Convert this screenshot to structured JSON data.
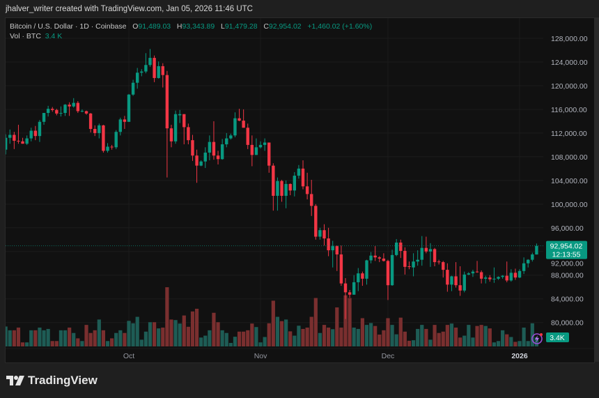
{
  "credit": "jhalver_writer created with TradingView.com, Jan 05, 2026 11:46 UTC",
  "legend": {
    "symbol": "Bitcoin / U.S. Dollar · 1D · Coinbase",
    "o_label": "O",
    "o": "91,489.03",
    "h_label": "H",
    "h": "93,343.89",
    "l_label": "L",
    "l": "91,479.28",
    "c_label": "C",
    "c": "92,954.02",
    "change": "+1,460.02 (+1.60%)",
    "vol_label": "Vol · BTC",
    "vol": "3.4 K"
  },
  "last_price_label": "92,954.02",
  "countdown": "12:13:55",
  "volume_label": "3.4K",
  "logo_text": "TradingView",
  "colors": {
    "up": "#089981",
    "down": "#f23645",
    "vol_up": "#1e5c55",
    "vol_down": "#7a2f2f",
    "background": "#111111"
  },
  "chart_data": {
    "type": "candlestick",
    "ylim": [
      76000,
      130000
    ],
    "y_ticks": [
      "128,000.00",
      "124,000.00",
      "120,000.00",
      "116,000.00",
      "112,000.00",
      "108,000.00",
      "104,000.00",
      "100,000.00",
      "96,000.00",
      "92,000.00",
      "88,000.00",
      "84,000.00",
      "80,000.00"
    ],
    "y_tick_values": [
      128000,
      124000,
      120000,
      116000,
      112000,
      108000,
      104000,
      100000,
      96000,
      92000,
      88000,
      84000,
      80000
    ],
    "x_ticks": [
      {
        "label": "Oct",
        "date": "2025-10-01"
      },
      {
        "label": "Nov",
        "date": "2025-11-01"
      },
      {
        "label": "Dec",
        "date": "2025-12-01"
      },
      {
        "label": "2026",
        "date": "2026-01-01"
      }
    ],
    "grid": true,
    "volume_unit": "K BTC",
    "columns": [
      "date",
      "open",
      "high",
      "low",
      "close",
      "volume"
    ],
    "candles": [
      [
        "2025-09-02",
        109200,
        111800,
        108400,
        111200,
        7.4
      ],
      [
        "2025-09-03",
        111200,
        112600,
        110200,
        111700,
        6
      ],
      [
        "2025-09-04",
        111700,
        112200,
        109300,
        110700,
        6
      ],
      [
        "2025-09-05",
        110700,
        113400,
        110200,
        110600,
        7
      ],
      [
        "2025-09-06",
        110600,
        111200,
        110200,
        110200,
        1.5
      ],
      [
        "2025-09-07",
        110200,
        111600,
        110000,
        111100,
        1.5
      ],
      [
        "2025-09-08",
        111100,
        112900,
        110600,
        112400,
        6
      ],
      [
        "2025-09-09",
        112400,
        113200,
        110800,
        111500,
        6
      ],
      [
        "2025-09-10",
        111500,
        114200,
        110500,
        113900,
        7
      ],
      [
        "2025-09-11",
        113900,
        115400,
        113400,
        115400,
        6
      ],
      [
        "2025-09-12",
        115400,
        116600,
        114800,
        116100,
        6.5
      ],
      [
        "2025-09-13",
        116100,
        116400,
        115600,
        115900,
        2
      ],
      [
        "2025-09-14",
        115900,
        116100,
        115000,
        115300,
        2
      ],
      [
        "2025-09-15",
        115300,
        116500,
        114800,
        115400,
        6
      ],
      [
        "2025-09-16",
        115400,
        116900,
        114900,
        116800,
        6
      ],
      [
        "2025-09-17",
        116800,
        117200,
        114900,
        116500,
        7
      ],
      [
        "2025-09-18",
        116500,
        117900,
        116300,
        117100,
        5
      ],
      [
        "2025-09-19",
        117100,
        117400,
        115400,
        115700,
        3
      ],
      [
        "2025-09-20",
        115700,
        116000,
        115500,
        115750,
        2
      ],
      [
        "2025-09-21",
        115700,
        115800,
        115100,
        115300,
        8
      ],
      [
        "2025-09-22",
        115300,
        115400,
        112100,
        112700,
        5
      ],
      [
        "2025-09-23",
        112700,
        113300,
        111500,
        112000,
        6
      ],
      [
        "2025-09-24",
        112000,
        113600,
        111100,
        113300,
        10
      ],
      [
        "2025-09-25",
        113300,
        113400,
        108700,
        109000,
        6
      ],
      [
        "2025-09-26",
        109000,
        110300,
        108700,
        109700,
        2
      ],
      [
        "2025-09-27",
        109700,
        110000,
        109200,
        109600,
        3
      ],
      [
        "2025-09-28",
        109600,
        112500,
        109300,
        112200,
        5
      ],
      [
        "2025-09-29",
        112200,
        114600,
        111600,
        114300,
        6
      ],
      [
        "2025-09-30",
        114300,
        114900,
        112700,
        113900,
        5
      ],
      [
        "2025-10-01",
        113900,
        118600,
        113900,
        118500,
        9.5
      ],
      [
        "2025-10-02",
        118500,
        121000,
        118300,
        120500,
        8.6
      ],
      [
        "2025-10-03",
        120500,
        123000,
        119500,
        122200,
        11
      ],
      [
        "2025-10-04",
        122200,
        122800,
        121600,
        122400,
        2.5
      ],
      [
        "2025-10-05",
        122400,
        125500,
        122100,
        123500,
        5.5
      ],
      [
        "2025-10-06",
        123500,
        126200,
        123200,
        124700,
        9
      ],
      [
        "2025-10-07",
        124700,
        125100,
        120600,
        121300,
        9
      ],
      [
        "2025-10-08",
        121300,
        124100,
        121200,
        123300,
        6.7
      ],
      [
        "2025-10-09",
        123300,
        123800,
        119700,
        121800,
        7
      ],
      [
        "2025-10-10",
        121800,
        122500,
        104500,
        112800,
        22
      ],
      [
        "2025-10-11",
        112800,
        113400,
        109600,
        110600,
        10
      ],
      [
        "2025-10-12",
        110600,
        115800,
        110200,
        115200,
        9.8
      ],
      [
        "2025-10-13",
        115000,
        115900,
        113700,
        115200,
        8.5
      ],
      [
        "2025-10-14",
        115200,
        115200,
        110100,
        113000,
        11.5
      ],
      [
        "2025-10-15",
        113000,
        113600,
        110100,
        110800,
        7.3
      ],
      [
        "2025-10-16",
        110800,
        111700,
        107300,
        108200,
        13
      ],
      [
        "2025-10-17",
        108200,
        109200,
        103600,
        106500,
        14
      ],
      [
        "2025-10-18",
        106500,
        107400,
        106400,
        107200,
        3.3
      ],
      [
        "2025-10-19",
        107200,
        109600,
        106100,
        108700,
        4
      ],
      [
        "2025-10-20",
        108700,
        111600,
        107400,
        110500,
        6
      ],
      [
        "2025-10-21",
        110500,
        114000,
        107500,
        108200,
        12.5
      ],
      [
        "2025-10-22",
        108200,
        109000,
        106700,
        107600,
        9
      ],
      [
        "2025-10-23",
        107600,
        111000,
        107500,
        110100,
        6
      ],
      [
        "2025-10-24",
        110100,
        112000,
        109600,
        111100,
        5
      ],
      [
        "2025-10-25",
        111100,
        111900,
        110900,
        111600,
        1.3
      ],
      [
        "2025-10-26",
        111600,
        115500,
        111300,
        114500,
        3.6
      ],
      [
        "2025-10-27",
        114500,
        116100,
        114000,
        114100,
        5.5
      ],
      [
        "2025-10-28",
        114100,
        116000,
        112900,
        112900,
        5.5
      ],
      [
        "2025-10-29",
        112900,
        113600,
        109300,
        110000,
        6
      ],
      [
        "2025-10-30",
        110000,
        111600,
        106400,
        108300,
        8.5
      ],
      [
        "2025-10-31",
        108300,
        111100,
        108300,
        109600,
        7.2
      ],
      [
        "2025-11-01",
        109600,
        110600,
        109400,
        110000,
        1.5
      ],
      [
        "2025-11-02",
        110000,
        111100,
        109000,
        110400,
        3.5
      ],
      [
        "2025-11-03",
        110400,
        110400,
        105300,
        106500,
        8.6
      ],
      [
        "2025-11-04",
        106500,
        106900,
        98900,
        101400,
        17
      ],
      [
        "2025-11-05",
        101400,
        104500,
        98900,
        103900,
        11
      ],
      [
        "2025-11-06",
        103900,
        104100,
        100400,
        101400,
        9.4
      ],
      [
        "2025-11-07",
        101400,
        104000,
        99300,
        103400,
        10
      ],
      [
        "2025-11-08",
        103400,
        103500,
        101500,
        102300,
        5.6
      ],
      [
        "2025-11-09",
        102300,
        105400,
        101300,
        104800,
        4
      ],
      [
        "2025-11-10",
        104800,
        106600,
        104300,
        106000,
        7.7
      ],
      [
        "2025-11-11",
        106000,
        107400,
        102500,
        103000,
        6.5
      ],
      [
        "2025-11-12",
        103000,
        105300,
        100800,
        101700,
        7
      ],
      [
        "2025-11-13",
        101700,
        104100,
        98000,
        99700,
        11
      ],
      [
        "2025-11-14",
        99700,
        100000,
        94000,
        94500,
        18
      ],
      [
        "2025-11-15",
        94500,
        96000,
        94000,
        95600,
        5
      ],
      [
        "2025-11-16",
        95600,
        96600,
        93000,
        94200,
        8
      ],
      [
        "2025-11-17",
        94200,
        96000,
        91200,
        92200,
        7
      ],
      [
        "2025-11-18",
        92200,
        93800,
        89300,
        92900,
        6.4
      ],
      [
        "2025-11-19",
        92900,
        93000,
        88700,
        91500,
        14.5
      ],
      [
        "2025-11-20",
        91500,
        93000,
        86200,
        86600,
        7
      ],
      [
        "2025-11-21",
        86600,
        87500,
        80600,
        85100,
        19
      ],
      [
        "2025-11-22",
        85100,
        85500,
        84200,
        84700,
        18
      ],
      [
        "2025-11-23",
        84700,
        88000,
        84700,
        86800,
        7
      ],
      [
        "2025-11-24",
        86800,
        89200,
        85300,
        88300,
        6.5
      ],
      [
        "2025-11-25",
        88300,
        88600,
        86200,
        87400,
        10.5
      ],
      [
        "2025-11-26",
        87400,
        90600,
        86400,
        90500,
        8
      ],
      [
        "2025-11-27",
        90500,
        91900,
        90000,
        91300,
        8.7
      ],
      [
        "2025-11-28",
        91300,
        92900,
        90400,
        91000,
        7.6
      ],
      [
        "2025-11-29",
        91000,
        91200,
        90200,
        90800,
        4.4
      ],
      [
        "2025-11-30",
        90800,
        91700,
        90300,
        90400,
        6
      ],
      [
        "2025-12-01",
        90400,
        90600,
        83800,
        86300,
        10.5
      ],
      [
        "2025-12-02",
        86300,
        92300,
        86200,
        91400,
        8
      ],
      [
        "2025-12-03",
        91400,
        94100,
        91200,
        93500,
        4.5
      ],
      [
        "2025-12-04",
        93500,
        94000,
        90900,
        92100,
        10.7
      ],
      [
        "2025-12-05",
        92100,
        92700,
        88100,
        89400,
        5.5
      ],
      [
        "2025-12-06",
        89500,
        90300,
        89000,
        89400,
        2.1
      ],
      [
        "2025-12-07",
        89300,
        91700,
        87800,
        90300,
        2.3
      ],
      [
        "2025-12-08",
        90300,
        92200,
        89600,
        90600,
        6.5
      ],
      [
        "2025-12-09",
        90600,
        94600,
        89600,
        92600,
        8
      ],
      [
        "2025-12-10",
        92600,
        94500,
        91700,
        92000,
        6.5
      ],
      [
        "2025-12-11",
        92000,
        93400,
        89400,
        92400,
        2.5
      ],
      [
        "2025-12-12",
        92400,
        92600,
        89500,
        90200,
        8
      ],
      [
        "2025-12-13",
        90300,
        90600,
        89800,
        90200,
        5
      ],
      [
        "2025-12-14",
        90200,
        90400,
        87600,
        88900,
        5.5
      ],
      [
        "2025-12-15",
        88900,
        90000,
        85200,
        86400,
        8
      ],
      [
        "2025-12-16",
        86400,
        87900,
        85300,
        87800,
        8.5
      ],
      [
        "2025-12-17",
        87800,
        90200,
        85900,
        86300,
        7
      ],
      [
        "2025-12-18",
        86300,
        89500,
        84500,
        85400,
        3.3
      ],
      [
        "2025-12-19",
        85400,
        88600,
        85100,
        88100,
        4
      ],
      [
        "2025-12-20",
        88100,
        88500,
        88000,
        88300,
        8
      ],
      [
        "2025-12-21",
        88300,
        88900,
        87700,
        88600,
        3.3
      ],
      [
        "2025-12-22",
        88600,
        90400,
        88400,
        88500,
        7.6
      ],
      [
        "2025-12-23",
        88500,
        88800,
        86600,
        87400,
        8
      ],
      [
        "2025-12-24",
        87400,
        87900,
        86600,
        87600,
        7.6
      ],
      [
        "2025-12-25",
        87600,
        88000,
        86900,
        87300,
        6.7
      ],
      [
        "2025-12-26",
        87300,
        89300,
        86700,
        87400,
        1.5
      ],
      [
        "2025-12-27",
        87400,
        87800,
        87200,
        87700,
        2
      ],
      [
        "2025-12-28",
        87700,
        88000,
        87400,
        87900,
        6
      ],
      [
        "2025-12-29",
        87900,
        90300,
        86800,
        87100,
        4.5
      ],
      [
        "2025-12-30",
        87100,
        89000,
        86900,
        88400,
        3.5
      ],
      [
        "2025-12-31",
        88400,
        89100,
        87200,
        87600,
        1.7
      ],
      [
        "2026-01-01",
        87600,
        89000,
        87500,
        88700,
        2
      ],
      [
        "2026-01-02",
        88700,
        91000,
        88200,
        90000,
        7
      ],
      [
        "2026-01-03",
        90000,
        90700,
        89300,
        90600,
        2
      ],
      [
        "2026-01-04",
        90600,
        91800,
        90300,
        91500,
        8.6
      ],
      [
        "2026-01-05",
        91489.03,
        93343.89,
        91479.28,
        92954.02,
        3.4
      ]
    ]
  }
}
